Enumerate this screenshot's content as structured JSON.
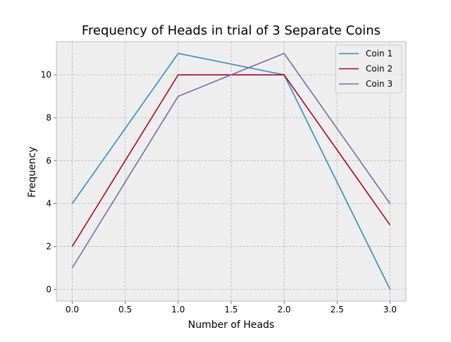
{
  "chart_data": {
    "type": "line",
    "title": "Frequency of Heads in trial of 3 Separate Coins",
    "xlabel": "Number of Heads",
    "ylabel": "Frequency",
    "x": [
      0,
      1,
      2,
      3
    ],
    "xlim": [
      -0.15,
      3.15
    ],
    "ylim": [
      -0.55,
      11.55
    ],
    "xticks": [
      0.0,
      0.5,
      1.0,
      1.5,
      2.0,
      2.5,
      3.0
    ],
    "xtick_labels": [
      "0.0",
      "0.5",
      "1.0",
      "1.5",
      "2.0",
      "2.5",
      "3.0"
    ],
    "yticks": [
      0,
      2,
      4,
      6,
      8,
      10
    ],
    "ytick_labels": [
      "0",
      "2",
      "4",
      "6",
      "8",
      "10"
    ],
    "grid": true,
    "legend_position": "top-right",
    "series": [
      {
        "name": "Coin 1",
        "color": "#348ABD",
        "values": [
          4,
          11,
          10,
          0
        ]
      },
      {
        "name": "Coin 2",
        "color": "#A60628",
        "values": [
          2,
          10,
          10,
          3
        ]
      },
      {
        "name": "Coin 3",
        "color": "#7A68A6",
        "values": [
          1,
          9,
          11,
          4
        ]
      }
    ],
    "style": {
      "plot_background": "#EEEEEE",
      "grid_color": "#B2B2B2",
      "frame_color": "#BCBCBC"
    }
  }
}
